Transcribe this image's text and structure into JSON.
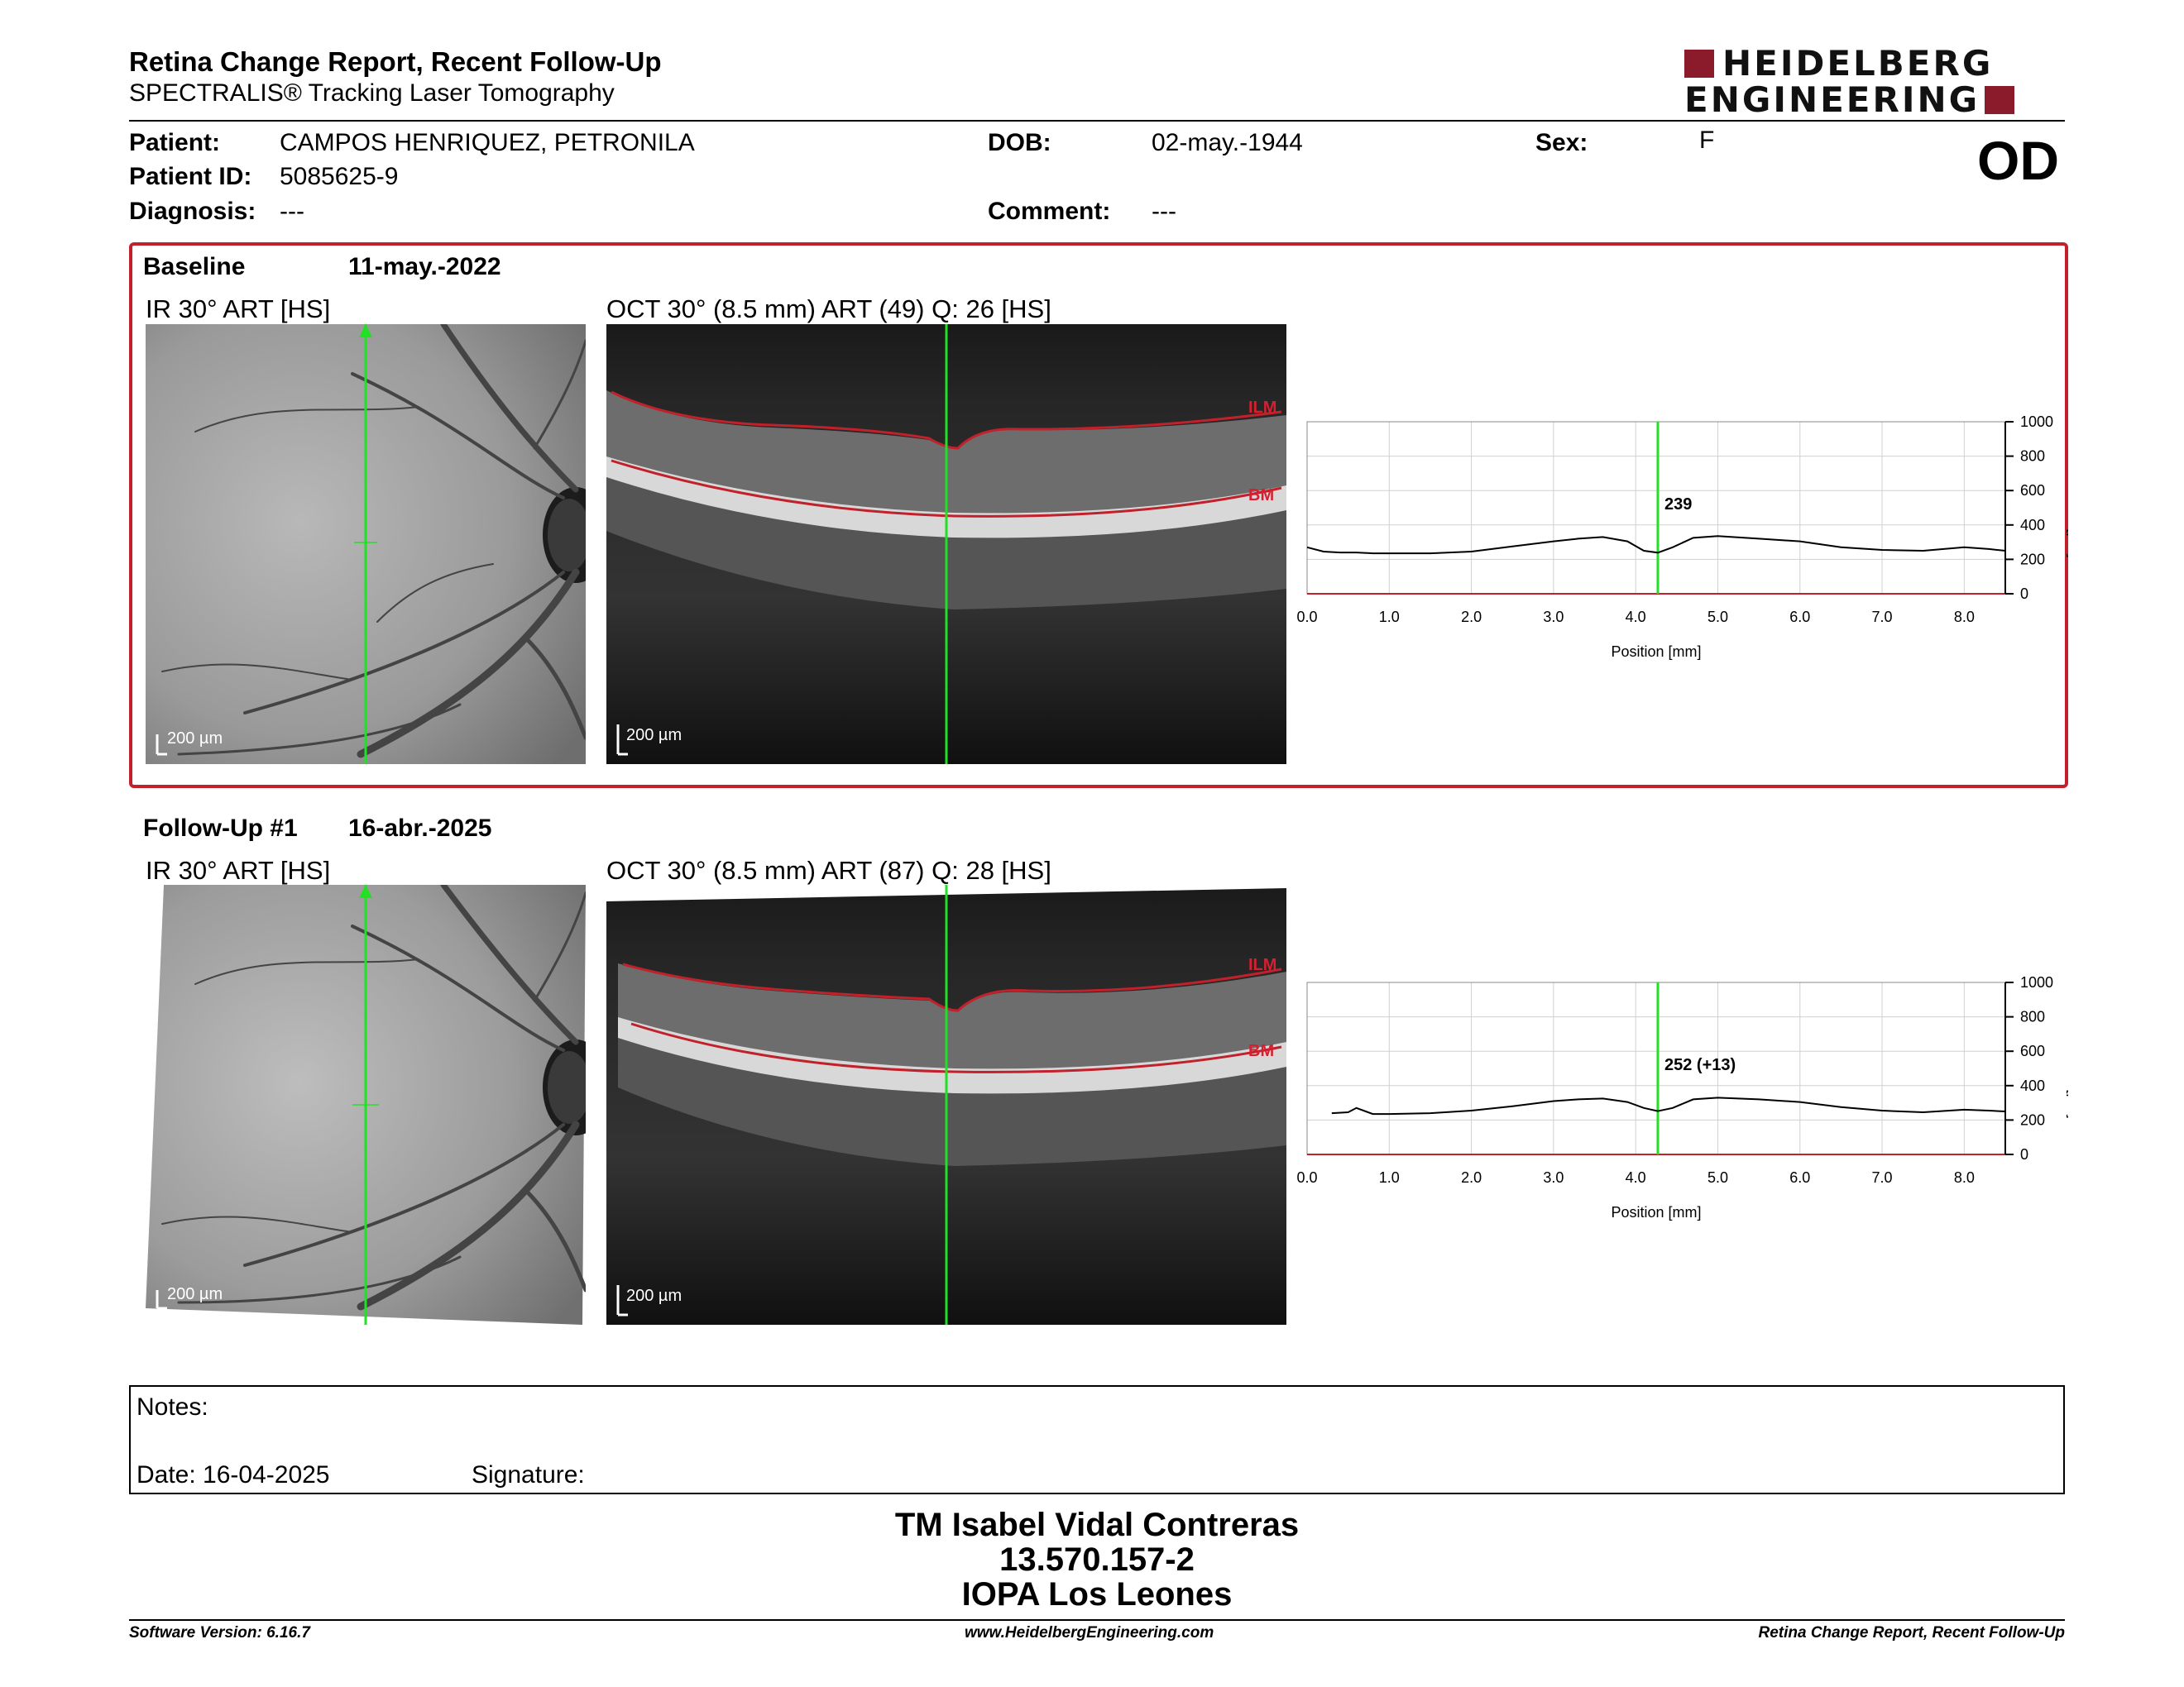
{
  "header": {
    "title": "Retina Change Report, Recent Follow-Up",
    "subtitle": "SPECTRALIS® Tracking Laser Tomography",
    "logo_line1": "HEIDELBERG",
    "logo_line2": "ENGINEERING"
  },
  "patient": {
    "patient_label": "Patient:",
    "patient_value": "CAMPOS HENRIQUEZ, PETRONILA",
    "id_label": "Patient ID:",
    "id_value": "5085625-9",
    "diagnosis_label": "Diagnosis:",
    "diagnosis_value": "---",
    "dob_label": "DOB:",
    "dob_value": "02-may.-1944",
    "comment_label": "Comment:",
    "comment_value": "---",
    "sex_label": "Sex:",
    "sex_value": "F",
    "eye": "OD"
  },
  "colors": {
    "accent_red": "#c0212b",
    "logo_red": "#8b1a2b",
    "scan_line": "#22e022"
  },
  "baseline": {
    "label": "Baseline",
    "date": "11-may.-2022",
    "ir_label": "IR 30° ART [HS]",
    "oct_label": "OCT 30° (8.5 mm) ART (49) Q: 26 [HS]",
    "scale": "200 µm",
    "ilm": "ILM",
    "bm": "BM"
  },
  "followup": {
    "label": "Follow-Up #1",
    "date": "16-abr.-2025",
    "ir_label": "IR 30° ART [HS]",
    "oct_label": "OCT 30° (8.5 mm) ART (87) Q: 28 [HS]",
    "scale": "200 µm",
    "ilm": "ILM",
    "bm": "BM"
  },
  "chart_data": [
    {
      "type": "line",
      "xlabel": "Position [mm]",
      "ylabel": "Thickness [µm]",
      "xlim": [
        0,
        8.5
      ],
      "ylim": [
        0,
        1000
      ],
      "xticks": [
        "0.0",
        "1.0",
        "2.0",
        "3.0",
        "4.0",
        "5.0",
        "6.0",
        "7.0",
        "8.0"
      ],
      "yticks": [
        "0",
        "200",
        "400",
        "600",
        "800",
        "1000"
      ],
      "grid": true,
      "marker_x": 4.27,
      "marker_label": "239",
      "series": [
        {
          "x": [
            0.0,
            0.2,
            0.4,
            0.6,
            0.8,
            1.0,
            1.5,
            2.0,
            2.5,
            3.0,
            3.3,
            3.6,
            3.9,
            4.1,
            4.27,
            4.45,
            4.7,
            5.0,
            5.5,
            6.0,
            6.5,
            7.0,
            7.5,
            8.0,
            8.3,
            8.5
          ],
          "y": [
            270,
            245,
            240,
            240,
            235,
            235,
            235,
            245,
            275,
            305,
            320,
            330,
            305,
            250,
            239,
            270,
            325,
            335,
            320,
            305,
            270,
            255,
            250,
            270,
            260,
            250
          ]
        }
      ]
    },
    {
      "type": "line",
      "xlabel": "Position [mm]",
      "ylabel": "Thickness [µm]",
      "xlim": [
        0,
        8.5
      ],
      "ylim": [
        0,
        1000
      ],
      "xticks": [
        "0.0",
        "1.0",
        "2.0",
        "3.0",
        "4.0",
        "5.0",
        "6.0",
        "7.0",
        "8.0"
      ],
      "yticks": [
        "0",
        "200",
        "400",
        "600",
        "800",
        "1000"
      ],
      "grid": true,
      "marker_x": 4.27,
      "marker_label": "252 (+13)",
      "series": [
        {
          "x": [
            0.3,
            0.5,
            0.6,
            0.8,
            1.0,
            1.5,
            2.0,
            2.5,
            3.0,
            3.3,
            3.6,
            3.9,
            4.1,
            4.27,
            4.45,
            4.7,
            5.0,
            5.5,
            6.0,
            6.5,
            7.0,
            7.5,
            8.0,
            8.3,
            8.5
          ],
          "y": [
            240,
            245,
            270,
            235,
            235,
            240,
            255,
            280,
            310,
            320,
            325,
            305,
            270,
            252,
            270,
            320,
            330,
            320,
            305,
            275,
            255,
            245,
            260,
            255,
            250
          ]
        }
      ]
    }
  ],
  "notes": {
    "label": "Notes:",
    "date_label": "Date: 16-04-2025",
    "signature_label": "Signature:"
  },
  "signature": {
    "name": "TM Isabel Vidal Contreras",
    "rut": "13.570.157-2",
    "org": "IOPA Los Leones"
  },
  "footer": {
    "version": "Software Version: 6.16.7",
    "url": "www.HeidelbergEngineering.com",
    "report": "Retina Change Report, Recent Follow-Up"
  }
}
